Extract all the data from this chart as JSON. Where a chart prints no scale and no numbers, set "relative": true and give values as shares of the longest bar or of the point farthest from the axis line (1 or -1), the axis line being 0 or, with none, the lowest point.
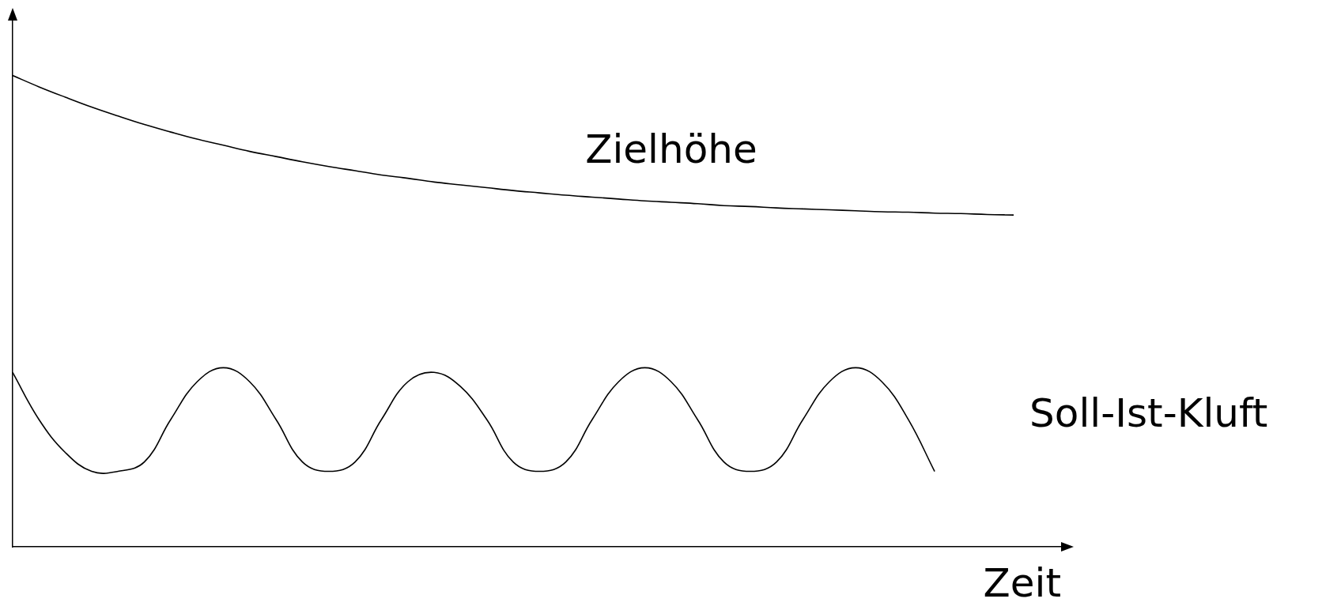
{
  "chart_data": {
    "type": "line",
    "relative": true,
    "xlabel": "Zeit",
    "marker": "none",
    "line_style": "solid",
    "categories": [
      null,
      null,
      null,
      null,
      null,
      null,
      null,
      null,
      null,
      null,
      null,
      null,
      null,
      null,
      null,
      null,
      null,
      null,
      null,
      null,
      null,
      null,
      null,
      null,
      null,
      null,
      null,
      null,
      null,
      null,
      null,
      null,
      null,
      null,
      null,
      null,
      null,
      null,
      null
    ],
    "series": [
      {
        "name": "Zielhöhe",
        "color": "#000000",
        "values": [
          1.0,
          0.976,
          0.954,
          0.933,
          0.914,
          0.896,
          0.88,
          0.865,
          0.852,
          0.839,
          0.828,
          0.817,
          0.807,
          0.798,
          0.789,
          0.782,
          0.774,
          0.768,
          0.762,
          0.756,
          0.751,
          0.746,
          0.742,
          0.738,
          0.734,
          0.731,
          0.728,
          0.724,
          0.722,
          0.719,
          0.717,
          0.715,
          0.713,
          0.711,
          0.71,
          0.708,
          0.707,
          0.705,
          0.704
        ]
      },
      {
        "name": "Soll-Ist-Kluft",
        "color": "#000000",
        "values": [
          0.37,
          0.27,
          0.2,
          0.16,
          0.16,
          0.18,
          0.27,
          0.35,
          0.38,
          0.35,
          0.27,
          0.18,
          0.16,
          0.18,
          0.27,
          0.35,
          0.37,
          0.34,
          0.27,
          0.18,
          0.16,
          0.18,
          0.27,
          0.35,
          0.38,
          0.35,
          0.27,
          0.18,
          0.16,
          0.18,
          0.27,
          0.35,
          0.38,
          0.35,
          0.27,
          0.16,
          null,
          null,
          null
        ]
      }
    ]
  }
}
